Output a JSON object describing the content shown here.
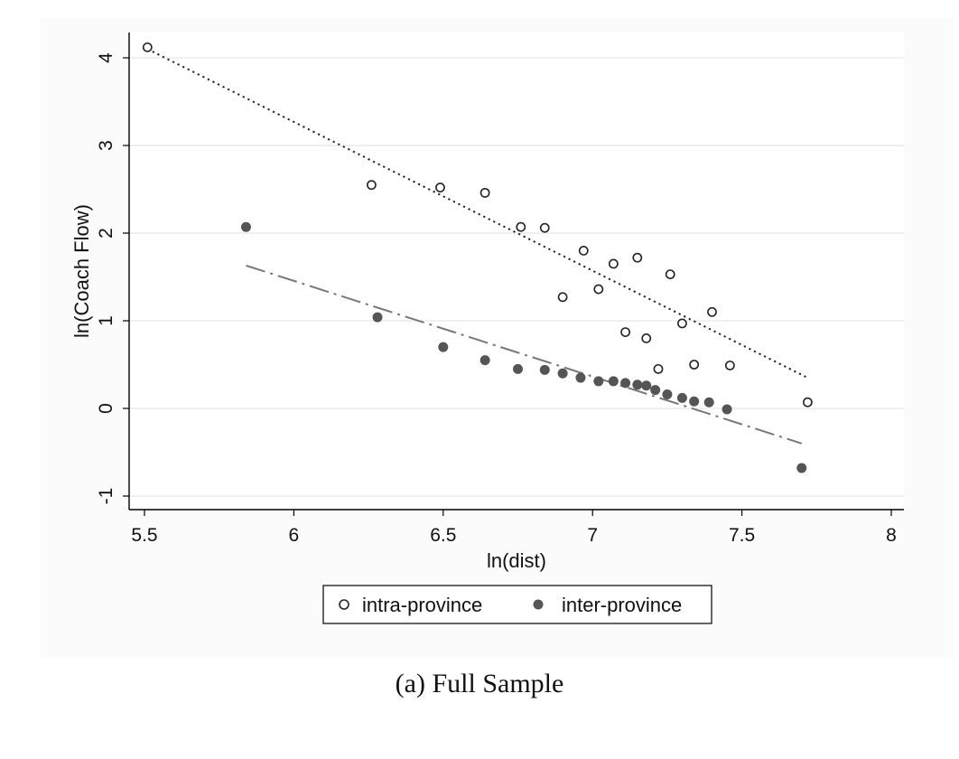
{
  "chart_data": {
    "type": "scatter",
    "xlabel": "ln(dist)",
    "ylabel": "ln(Coach Flow)",
    "xlim": [
      5.5,
      8
    ],
    "ylim": [
      -1,
      4
    ],
    "x_ticks": [
      "5.5",
      "6",
      "6.5",
      "7",
      "7.5",
      "8"
    ],
    "y_ticks": [
      "-1",
      "0",
      "1",
      "2",
      "3",
      "4"
    ],
    "grid": "horizontal",
    "legend_position": "bottom",
    "series": [
      {
        "name": "intra-province",
        "marker": "hollow-circle",
        "color": "#222222",
        "points": [
          [
            5.51,
            4.12
          ],
          [
            6.26,
            2.55
          ],
          [
            6.49,
            2.52
          ],
          [
            6.64,
            2.46
          ],
          [
            6.76,
            2.07
          ],
          [
            6.84,
            2.06
          ],
          [
            6.9,
            1.27
          ],
          [
            6.97,
            1.8
          ],
          [
            7.02,
            1.36
          ],
          [
            7.07,
            1.65
          ],
          [
            7.11,
            0.87
          ],
          [
            7.15,
            1.72
          ],
          [
            7.18,
            0.8
          ],
          [
            7.22,
            0.45
          ],
          [
            7.26,
            1.53
          ],
          [
            7.3,
            0.97
          ],
          [
            7.34,
            0.5
          ],
          [
            7.4,
            1.1
          ],
          [
            7.46,
            0.49
          ],
          [
            7.72,
            0.07
          ]
        ],
        "fit": {
          "style": "dotted",
          "x": [
            5.51,
            7.72
          ],
          "y": [
            4.1,
            0.35
          ]
        }
      },
      {
        "name": "inter-province",
        "marker": "filled-circle",
        "color": "#555555",
        "points": [
          [
            5.84,
            2.07
          ],
          [
            6.28,
            1.04
          ],
          [
            6.5,
            0.7
          ],
          [
            6.64,
            0.55
          ],
          [
            6.75,
            0.45
          ],
          [
            6.84,
            0.44
          ],
          [
            6.9,
            0.4
          ],
          [
            6.96,
            0.35
          ],
          [
            7.02,
            0.31
          ],
          [
            7.07,
            0.31
          ],
          [
            7.11,
            0.29
          ],
          [
            7.15,
            0.27
          ],
          [
            7.18,
            0.26
          ],
          [
            7.21,
            0.21
          ],
          [
            7.25,
            0.16
          ],
          [
            7.3,
            0.12
          ],
          [
            7.34,
            0.08
          ],
          [
            7.39,
            0.07
          ],
          [
            7.45,
            -0.01
          ],
          [
            7.7,
            -0.68
          ]
        ],
        "fit": {
          "style": "dash-dot",
          "x": [
            5.84,
            7.7
          ],
          "y": [
            1.63,
            -0.4
          ]
        }
      }
    ]
  },
  "legend": {
    "intra_label": "intra-province",
    "inter_label": "inter-province"
  },
  "caption": "(a) Full Sample"
}
